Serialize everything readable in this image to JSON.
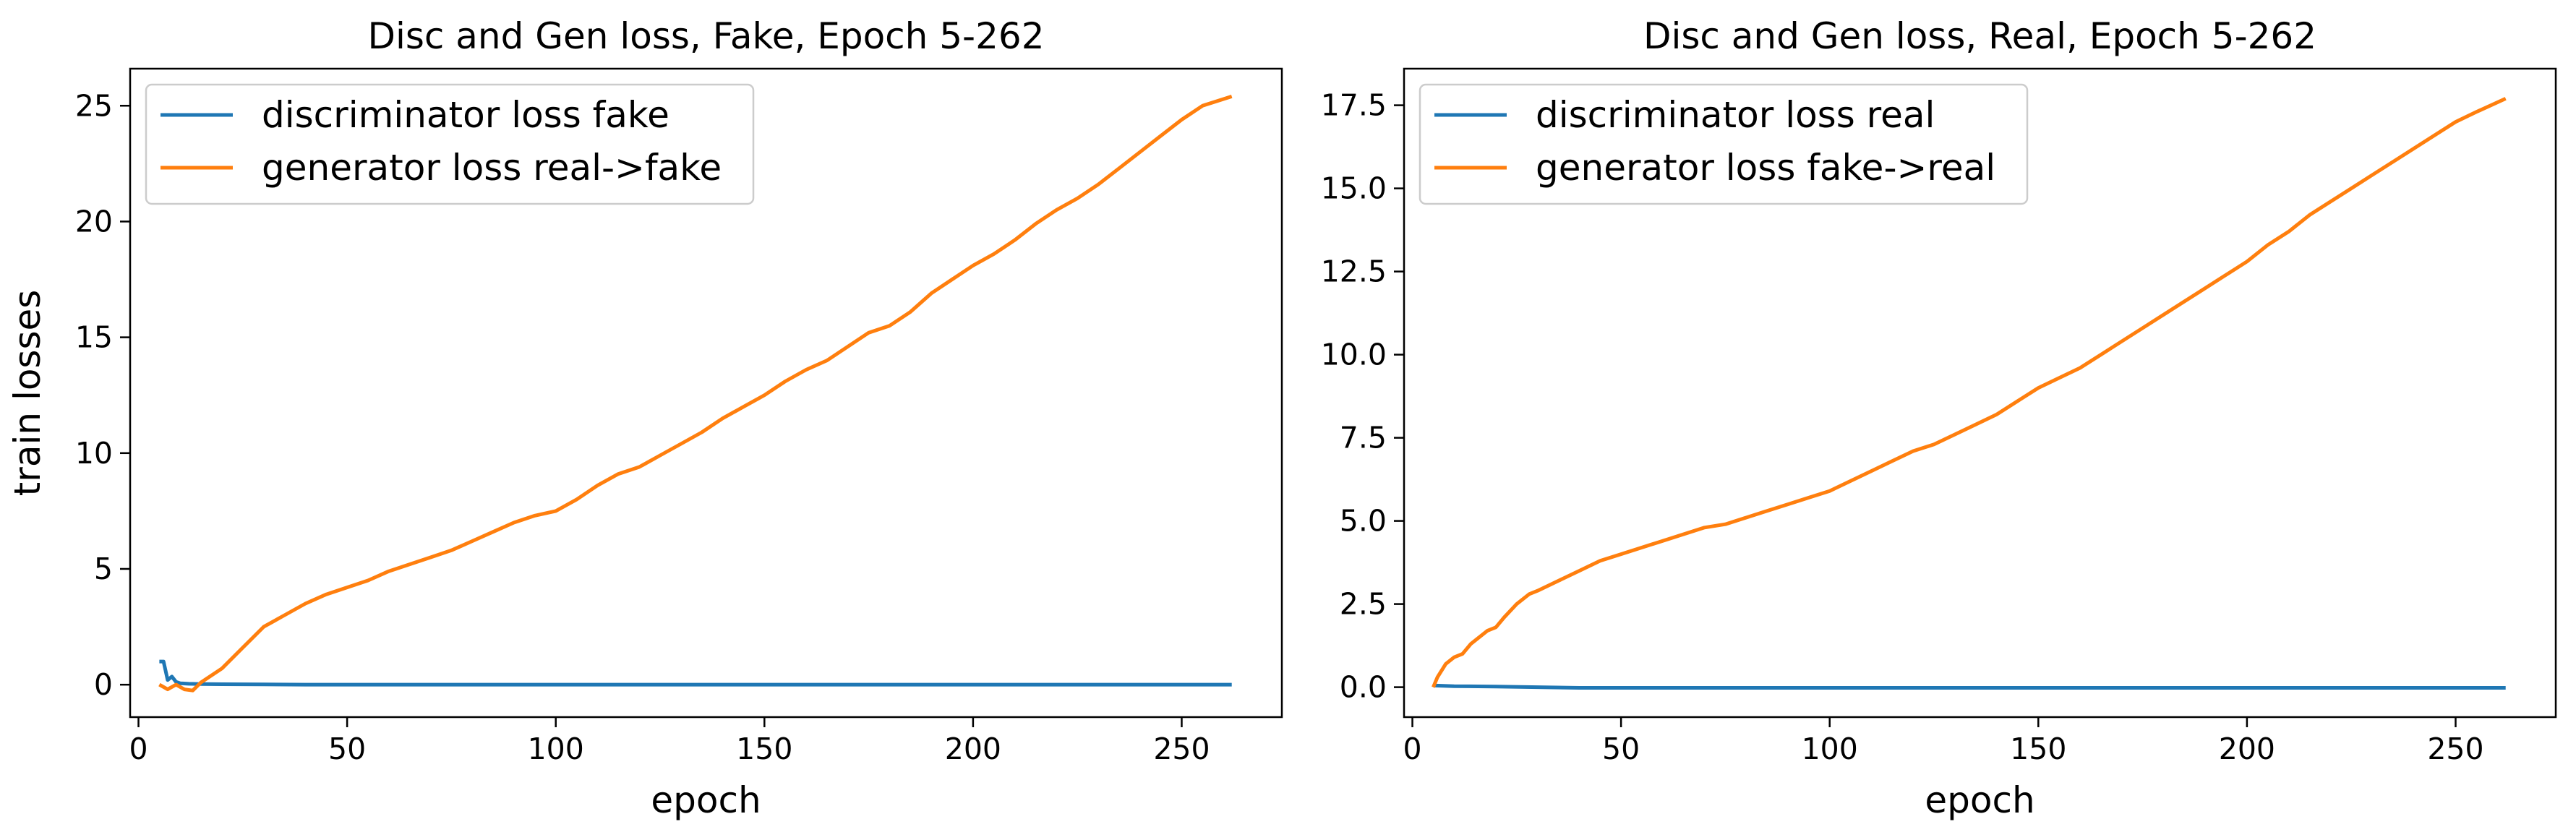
{
  "chart_data": [
    {
      "type": "line",
      "title": "Disc and Gen loss, Fake, Epoch 5-262",
      "xlabel": "epoch",
      "ylabel": "train losses",
      "xlim": [
        -2,
        274
      ],
      "ylim": [
        -1.4,
        26.6
      ],
      "xticks": [
        0,
        50,
        100,
        150,
        200,
        250
      ],
      "xtick_labels": [
        "0",
        "50",
        "100",
        "150",
        "200",
        "250"
      ],
      "yticks": [
        0,
        5,
        10,
        15,
        20,
        25
      ],
      "ytick_labels": [
        "0",
        "5",
        "10",
        "15",
        "20",
        "25"
      ],
      "grid": false,
      "legend_position": "upper-left",
      "series": [
        {
          "name": "discriminator loss fake",
          "color": "#1f77b4",
          "x": [
            5,
            6,
            7,
            8,
            9,
            10,
            12,
            15,
            20,
            30,
            40,
            60,
            100,
            150,
            200,
            262
          ],
          "y": [
            1.0,
            1.0,
            0.2,
            0.35,
            0.12,
            0.06,
            0.04,
            0.03,
            0.02,
            0.01,
            0.0,
            0.0,
            0.0,
            0.0,
            0.0,
            0.0
          ]
        },
        {
          "name": "generator loss real->fake",
          "color": "#ff7f0e",
          "x": [
            5,
            7,
            9,
            11,
            13,
            15,
            20,
            25,
            30,
            35,
            40,
            45,
            50,
            55,
            60,
            65,
            70,
            75,
            80,
            85,
            90,
            95,
            100,
            105,
            110,
            115,
            120,
            125,
            130,
            135,
            140,
            145,
            150,
            155,
            160,
            165,
            170,
            175,
            180,
            185,
            190,
            195,
            200,
            205,
            210,
            215,
            220,
            225,
            230,
            235,
            240,
            245,
            250,
            255,
            262
          ],
          "y": [
            0.0,
            -0.2,
            0.0,
            -0.2,
            -0.25,
            0.1,
            0.7,
            1.6,
            2.5,
            3.0,
            3.5,
            3.9,
            4.2,
            4.5,
            4.9,
            5.2,
            5.5,
            5.8,
            6.2,
            6.6,
            7.0,
            7.3,
            7.5,
            8.0,
            8.6,
            9.1,
            9.4,
            9.9,
            10.4,
            10.9,
            11.5,
            12.0,
            12.5,
            13.1,
            13.6,
            14.0,
            14.6,
            15.2,
            15.5,
            16.1,
            16.9,
            17.5,
            18.1,
            18.6,
            19.2,
            19.9,
            20.5,
            21.0,
            21.6,
            22.3,
            23.0,
            23.7,
            24.4,
            25.0,
            25.4
          ]
        }
      ]
    },
    {
      "type": "line",
      "title": "Disc and Gen loss, Real, Epoch 5-262",
      "xlabel": "epoch",
      "ylabel": "",
      "xlim": [
        -2,
        274
      ],
      "ylim": [
        -0.9,
        18.6
      ],
      "xticks": [
        0,
        50,
        100,
        150,
        200,
        250
      ],
      "xtick_labels": [
        "0",
        "50",
        "100",
        "150",
        "200",
        "250"
      ],
      "yticks": [
        0,
        2.5,
        5,
        7.5,
        10,
        12.5,
        15,
        17.5
      ],
      "ytick_labels": [
        "0.0",
        "2.5",
        "5.0",
        "7.5",
        "10.0",
        "12.5",
        "15.0",
        "17.5"
      ],
      "grid": false,
      "legend_position": "upper-left",
      "series": [
        {
          "name": "discriminator loss real",
          "color": "#1f77b4",
          "x": [
            5,
            10,
            20,
            30,
            40,
            60,
            100,
            150,
            200,
            262
          ],
          "y": [
            0.05,
            0.03,
            0.02,
            0.0,
            -0.02,
            -0.02,
            -0.02,
            -0.02,
            -0.02,
            -0.02
          ]
        },
        {
          "name": "generator loss fake->real",
          "color": "#ff7f0e",
          "x": [
            5,
            6,
            8,
            10,
            12,
            14,
            16,
            18,
            20,
            22,
            25,
            28,
            30,
            35,
            40,
            45,
            50,
            55,
            60,
            65,
            70,
            75,
            80,
            85,
            90,
            95,
            100,
            105,
            110,
            115,
            120,
            125,
            130,
            135,
            140,
            145,
            150,
            155,
            160,
            165,
            170,
            175,
            180,
            185,
            190,
            195,
            200,
            205,
            210,
            215,
            220,
            225,
            230,
            235,
            240,
            245,
            250,
            255,
            262
          ],
          "y": [
            0.0,
            0.3,
            0.7,
            0.9,
            1.0,
            1.3,
            1.5,
            1.7,
            1.8,
            2.1,
            2.5,
            2.8,
            2.9,
            3.2,
            3.5,
            3.8,
            4.0,
            4.2,
            4.4,
            4.6,
            4.8,
            4.9,
            5.1,
            5.3,
            5.5,
            5.7,
            5.9,
            6.2,
            6.5,
            6.8,
            7.1,
            7.3,
            7.6,
            7.9,
            8.2,
            8.6,
            9.0,
            9.3,
            9.6,
            10.0,
            10.4,
            10.8,
            11.2,
            11.6,
            12.0,
            12.4,
            12.8,
            13.3,
            13.7,
            14.2,
            14.6,
            15.0,
            15.4,
            15.8,
            16.2,
            16.6,
            17.0,
            17.3,
            17.7
          ]
        }
      ]
    }
  ]
}
